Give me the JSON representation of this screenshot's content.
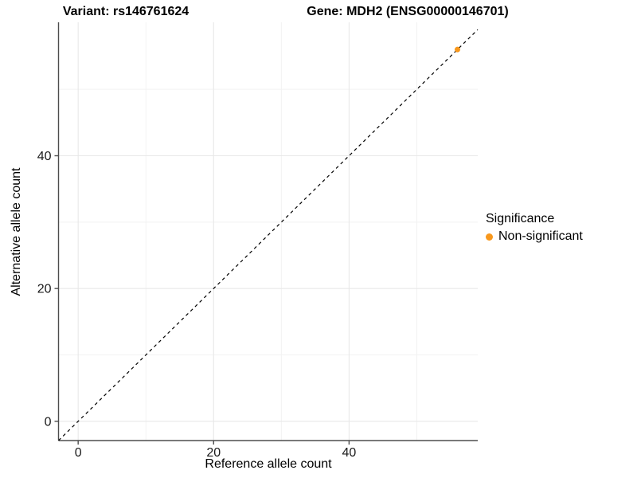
{
  "figure": {
    "title_variant": "Variant: rs146761624",
    "title_gene": "Gene: MDH2 (ENSG00000146701)"
  },
  "chart_data": {
    "type": "scatter",
    "title": "Variant: rs146761624 — Gene: MDH2 (ENSG00000146701)",
    "xlabel": "Reference allele count",
    "ylabel": "Alternative allele count",
    "xlim": [
      -2.9,
      59.0
    ],
    "ylim": [
      -2.9,
      60.1
    ],
    "xticks": [
      0,
      20,
      40
    ],
    "yticks": [
      0,
      20,
      40
    ],
    "minor_gridlines_x": [
      10,
      30,
      50
    ],
    "minor_gridlines_y": [
      10,
      30,
      50
    ],
    "grid": true,
    "legend_position": "right",
    "reference_line": {
      "equation": "y = x",
      "style": "dashed",
      "color": "#000000"
    },
    "series": [
      {
        "name": "Non-significant",
        "color": "#F8981D",
        "points": [
          {
            "x": 56,
            "y": 56
          }
        ]
      }
    ],
    "legend": {
      "title": "Significance",
      "entries": [
        {
          "label": "Non-significant",
          "color": "#F8981D"
        }
      ]
    },
    "colors": {
      "point": "#F8981D",
      "axis_line": "#4d4d4d",
      "tick_label": "#1a1a1a",
      "grid_major": "#e8e8e8",
      "grid_minor": "#f2f2f2",
      "background": "#ffffff"
    }
  }
}
